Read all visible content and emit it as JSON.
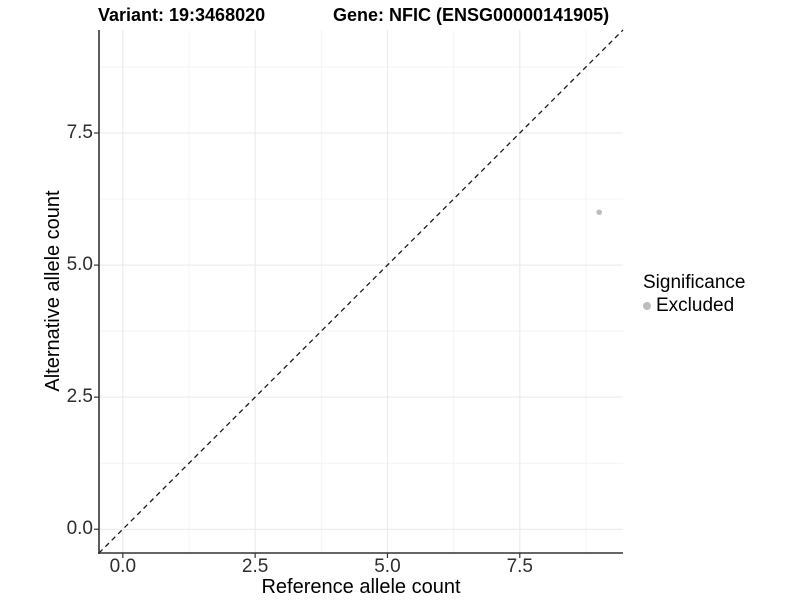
{
  "figure": {
    "titles": {
      "left": "Variant: 19:3468020",
      "right": "Gene: NFIC (ENSG00000141905)"
    }
  },
  "chart_data": {
    "type": "scatter",
    "xlabel": "Reference allele count",
    "ylabel": "Alternative allele count",
    "xlim": [
      -0.45,
      9.45
    ],
    "ylim": [
      -0.45,
      9.45
    ],
    "x_ticks": {
      "values": [
        0,
        2.5,
        5,
        7.5
      ],
      "labels": [
        "0.0",
        "2.5",
        "5.0",
        "7.5"
      ]
    },
    "y_ticks": {
      "values": [
        0,
        2.5,
        5,
        7.5
      ],
      "labels": [
        "0.0",
        "2.5",
        "5.0",
        "7.5"
      ]
    },
    "x_minor_ticks": [
      1.25,
      3.75,
      6.25,
      8.75
    ],
    "y_minor_ticks": [
      1.25,
      3.75,
      6.25,
      8.75
    ],
    "grid": "major+minor",
    "reference_line": {
      "type": "identity",
      "slope": 1,
      "intercept": 0,
      "style": "dashed"
    },
    "series": [
      {
        "name": "Excluded",
        "points": [
          {
            "x": 9,
            "y": 6
          }
        ]
      }
    ],
    "legend": {
      "title": "Significance",
      "position": "right",
      "items": [
        {
          "label": "Excluded",
          "color": "#bdbdbd"
        }
      ]
    }
  },
  "style": {
    "background": "#ffffff",
    "point_color": "#bdbdbd",
    "point_radius": 2.8,
    "legend_key_color": "#bdbdbd",
    "axis_line_color": "#333333",
    "tick_mark_color": "#333333",
    "grid_major_color": "#e9e9e9",
    "grid_minor_color": "#f4f4f4",
    "dashed_line_color": "#1a1a1a"
  }
}
